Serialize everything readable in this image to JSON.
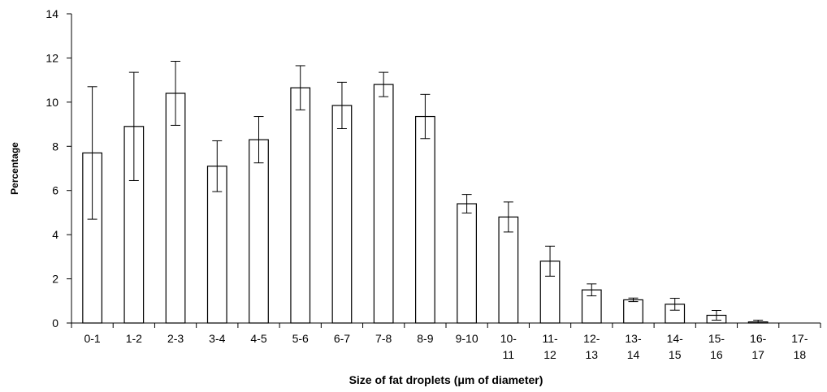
{
  "chart_data": {
    "type": "bar",
    "title": "",
    "xlabel": "Size of fat droplets (μm of diameter)",
    "ylabel": "Percentage",
    "ylim": [
      0,
      14
    ],
    "y_ticks": [
      0,
      2,
      4,
      6,
      8,
      10,
      12,
      14
    ],
    "grid": false,
    "categories": [
      [
        "0-1"
      ],
      [
        "1-2"
      ],
      [
        "2-3"
      ],
      [
        "3-4"
      ],
      [
        "4-5"
      ],
      [
        "5-6"
      ],
      [
        "6-7"
      ],
      [
        "7-8"
      ],
      [
        "8-9"
      ],
      [
        "9-10"
      ],
      [
        "10-",
        "11"
      ],
      [
        "11-",
        "12"
      ],
      [
        "12-",
        "13"
      ],
      [
        "13-",
        "14"
      ],
      [
        "14-",
        "15"
      ],
      [
        "15-",
        "16"
      ],
      [
        "16-",
        "17"
      ],
      [
        "17-",
        "18"
      ]
    ],
    "values": [
      7.7,
      8.9,
      10.4,
      7.1,
      8.3,
      10.65,
      9.85,
      10.8,
      9.35,
      5.4,
      4.8,
      2.8,
      1.5,
      1.05,
      0.85,
      0.35,
      0.05,
      0.0
    ],
    "error_bars": [
      3.0,
      2.45,
      1.45,
      1.15,
      1.05,
      1.0,
      1.05,
      0.55,
      1.0,
      0.42,
      0.68,
      0.68,
      0.27,
      0.08,
      0.27,
      0.22,
      0.08,
      0.0
    ],
    "colors": {
      "bar_fill": "#ffffff",
      "bar_stroke": "#000000",
      "axis": "#000000"
    }
  }
}
